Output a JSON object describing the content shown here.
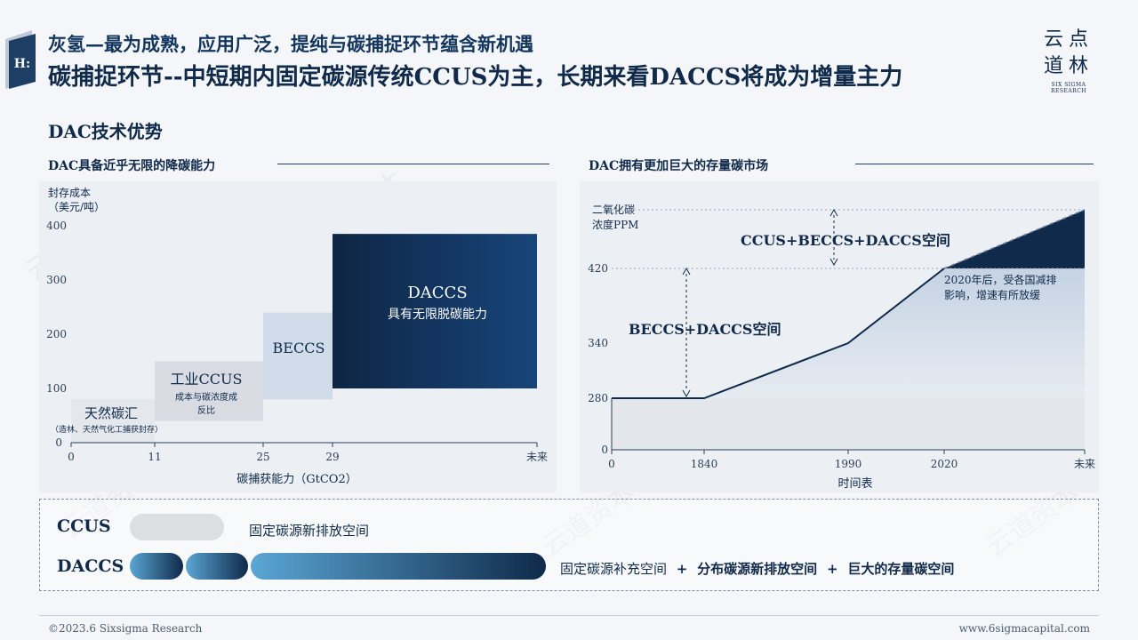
{
  "header": {
    "badge": "H:",
    "title_line1": "灰氢—最为成熟，应用广泛，提纯与碳捕捉环节蕴含新机遇",
    "title_line2": "碳捕捉环节--中短期内固定碳源传统CCUS为主，长期来看DACCS将成为增量主力",
    "logo_line1": "云点",
    "logo_line2": "道林",
    "logo_sub": "SIX SIGMA RESEARCH"
  },
  "section_title": "DAC技术优势",
  "watermark": "云道资本",
  "left_panel": {
    "subtitle": "DAC具备近乎无限的降碳能力"
  },
  "right_panel": {
    "subtitle": "DAC拥有更加巨大的存量碳市场"
  },
  "chart_data": [
    {
      "type": "bar",
      "ylabel": "封存成本（美元/吨）",
      "ylabel_line1": "封存成本",
      "ylabel_line2": "（美元/吨）",
      "xlabel": "碳捕获能力（GtCO2）",
      "yticks": [
        "0",
        "100",
        "200",
        "300",
        "400"
      ],
      "xticks": [
        "0",
        "11",
        "25",
        "29",
        "未来"
      ],
      "ylim": [
        0,
        400
      ],
      "bars": [
        {
          "name": "天然碳汇",
          "note": "（造林、天然气化工捕获封存）",
          "x_start": 0,
          "x_end": 11,
          "y_low": 0,
          "y_high": 80,
          "color": "#e4e7eb"
        },
        {
          "name": "工业CCUS",
          "note_line1": "成本与碳浓度成",
          "note_line2": "反比",
          "x_start": 11,
          "x_end": 25,
          "y_low": 40,
          "y_high": 150,
          "color": "#d8dce2"
        },
        {
          "name": "BECCS",
          "x_start": 25,
          "x_end": 29,
          "y_low": 80,
          "y_high": 240,
          "color": "#d0dcea"
        },
        {
          "name": "DACCS",
          "note": "具有无限脱碳能力",
          "x_start": 29,
          "x_end": "未来",
          "y_low": 100,
          "y_high": 385,
          "color": "#0f2a4a"
        }
      ]
    },
    {
      "type": "line",
      "ylabel_line1": "二氧化碳",
      "ylabel_line2": "浓度PPM",
      "xlabel": "时间表",
      "yticks": [
        "0",
        "280",
        "340",
        "420"
      ],
      "xticks": [
        "0",
        "1840",
        "1990",
        "2020",
        "未来"
      ],
      "series": [
        {
          "x": [
            "0",
            "1840",
            "1990",
            "2020",
            "未来"
          ],
          "values": [
            280,
            280,
            340,
            420,
            470
          ]
        }
      ],
      "annotations": {
        "upper_space": "CCUS+BECCS+DACCS空间",
        "lower_space": "BECCS+DACCS空间",
        "note_line1": "2020年后，受各国减排",
        "note_line2": "影响，增速有所放缓"
      }
    }
  ],
  "legend": {
    "ccus_label": "CCUS",
    "ccus_text": "固定碳源新排放空间",
    "daccs_label": "DACCS",
    "daccs_text1": "固定碳源补充空间",
    "plus1": "+",
    "daccs_text2": "分布碳源新排放空间",
    "plus2": "+",
    "daccs_text3": "巨大的存量碳空间"
  },
  "footer": {
    "left": "©2023.6 Sixsigma Research",
    "right": "www.6sigmacapital.com"
  }
}
